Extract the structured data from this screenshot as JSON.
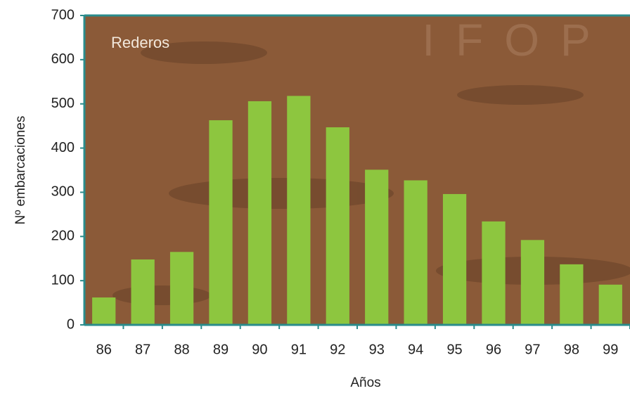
{
  "chart_data": {
    "type": "bar",
    "annotations": [
      "Rederos",
      "IFOP"
    ],
    "x_label": "Años",
    "y_label": "Nº embarcaciones",
    "categories": [
      "86",
      "87",
      "88",
      "89",
      "90",
      "91",
      "92",
      "93",
      "94",
      "95",
      "96",
      "97",
      "98",
      "99"
    ],
    "values": [
      62,
      148,
      165,
      463,
      506,
      518,
      447,
      351,
      327,
      296,
      234,
      192,
      137,
      91
    ],
    "color": "#8dc63f",
    "background": "#8b5a38",
    "ylim": [
      0,
      700
    ],
    "yticks": [
      0,
      100,
      200,
      300,
      400,
      500,
      600,
      700
    ],
    "grid": false
  }
}
